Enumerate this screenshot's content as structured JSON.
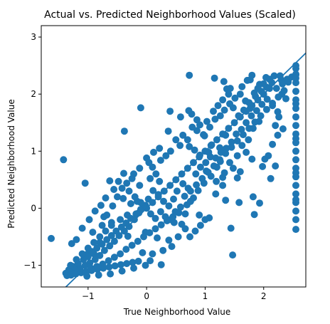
{
  "chart_data": {
    "type": "scatter",
    "title": "Actual vs. Predicted Neighborhood Values (Scaled)",
    "xlabel": "True Neighborhood Value",
    "ylabel": "Predicted Neighborhood Value",
    "xlim": [
      -1.8,
      2.72
    ],
    "ylim": [
      -1.38,
      3.2
    ],
    "xticks": [
      -1,
      0,
      1,
      2
    ],
    "xtick_labels": [
      "−1",
      "0",
      "1",
      "2"
    ],
    "yticks": [
      -1,
      0,
      1,
      2,
      3
    ],
    "ytick_labels": [
      "−1",
      "0",
      "1",
      "2",
      "3"
    ],
    "grid": false,
    "legend": "none",
    "reference_line": {
      "slope": 1,
      "intercept": 0
    },
    "colors": {
      "points": "#1f77b4",
      "line": "#1f77b4",
      "axes": "#000000"
    },
    "points": [
      [
        -1.63,
        -0.53
      ],
      [
        -1.42,
        0.85
      ],
      [
        -1.05,
        0.44
      ],
      [
        -0.38,
        1.35
      ],
      [
        -0.1,
        1.76
      ],
      [
        0.37,
        1.35
      ],
      [
        0.7,
        1.2
      ],
      [
        0.77,
        1.65
      ],
      [
        0.86,
        1.55
      ],
      [
        0.91,
        1.46
      ],
      [
        0.97,
        1.29
      ],
      [
        0.78,
        1.42
      ],
      [
        0.73,
        2.33
      ],
      [
        0.72,
        1.71
      ],
      [
        0.58,
        1.6
      ],
      [
        0.4,
        1.7
      ],
      [
        1.16,
        2.28
      ],
      [
        1.32,
        2.22
      ],
      [
        1.37,
        2.09
      ],
      [
        1.43,
        2.1
      ],
      [
        1.63,
        2.13
      ],
      [
        1.72,
        2.24
      ],
      [
        1.77,
        2.25
      ],
      [
        1.8,
        2.33
      ],
      [
        1.93,
        2.17
      ],
      [
        2.04,
        2.29
      ],
      [
        2.3,
        2.25
      ],
      [
        2.42,
        2.21
      ],
      [
        2.55,
        2.34
      ],
      [
        0.47,
        -0.25
      ],
      [
        0.6,
        -0.28
      ],
      [
        1.07,
        -0.17
      ],
      [
        1.58,
        0.1
      ],
      [
        1.8,
        0.86
      ],
      [
        1.84,
        -0.11
      ],
      [
        1.98,
        0.73
      ],
      [
        2.12,
        0.52
      ],
      [
        2.08,
        0.92
      ],
      [
        2.2,
        0.74
      ],
      [
        2.24,
        1.28
      ],
      [
        2.26,
        1.6
      ],
      [
        2.33,
        1.39
      ],
      [
        1.44,
        -0.35
      ],
      [
        1.47,
        -0.82
      ],
      [
        0.83,
        -0.4
      ],
      [
        0.43,
        -0.67
      ],
      [
        0.06,
        -0.92
      ],
      [
        -0.07,
        -0.78
      ],
      [
        0.25,
        -0.99
      ],
      [
        0.18,
        -0.52
      ],
      [
        -0.02,
        -0.42
      ],
      [
        -0.32,
        -0.49
      ],
      [
        0.69,
        0.06
      ],
      [
        0.9,
        -0.12
      ],
      [
        1.18,
        0.25
      ],
      [
        1.3,
        0.4
      ],
      [
        1.3,
        0.54
      ],
      [
        1.35,
        0.14
      ],
      [
        1.6,
        0.64
      ],
      [
        1.7,
        0.98
      ],
      [
        1.93,
        0.09
      ],
      [
        2.02,
        0.86
      ],
      [
        1.82,
        0.2
      ],
      [
        1.55,
        0.53
      ],
      [
        1.19,
        0.47
      ],
      [
        1.26,
        0.82
      ],
      [
        1.25,
        1.06
      ],
      [
        1.35,
        1.28
      ],
      [
        1.48,
        0.7
      ],
      [
        1.02,
        0.65
      ],
      [
        -0.9,
        -0.8
      ],
      [
        -0.8,
        -0.6
      ],
      [
        -1.28,
        -0.62
      ],
      [
        -1.02,
        -0.81
      ],
      [
        -0.92,
        -0.42
      ],
      [
        -0.73,
        -0.15
      ],
      [
        -0.6,
        -0.25
      ],
      [
        -0.45,
        -0.2
      ],
      [
        -0.33,
        -0.12
      ],
      [
        -0.27,
        0.08
      ],
      [
        -0.16,
        0.12
      ],
      [
        -0.4,
        0.17
      ],
      [
        -0.56,
        0.33
      ],
      [
        -0.63,
        0.48
      ],
      [
        -0.48,
        0.47
      ],
      [
        -0.39,
        0.61
      ],
      [
        -0.25,
        0.52
      ],
      [
        -0.12,
        0.4
      ],
      [
        0.06,
        0.52
      ],
      [
        0.22,
        0.47
      ],
      [
        0.16,
        0.6
      ],
      [
        0.1,
        0.72
      ],
      [
        0.04,
        0.8
      ],
      [
        0.24,
        0.84
      ],
      [
        0.33,
        0.92
      ],
      [
        0.41,
        1.0
      ],
      [
        0.57,
        1.1
      ],
      [
        0.73,
        1.08
      ],
      [
        0.82,
        1.02
      ],
      [
        0.91,
        0.93
      ],
      [
        1.06,
        0.98
      ],
      [
        1.11,
        1.11
      ],
      [
        0.99,
        1.27
      ],
      [
        1.08,
        1.42
      ],
      [
        1.17,
        1.56
      ],
      [
        1.26,
        1.62
      ],
      [
        1.33,
        1.72
      ],
      [
        1.42,
        1.83
      ],
      [
        1.51,
        1.93
      ],
      [
        1.6,
        2.0
      ],
      [
        1.69,
        1.88
      ],
      [
        1.77,
        1.75
      ],
      [
        1.86,
        1.96
      ],
      [
        1.96,
        2.05
      ],
      [
        2.05,
        2.12
      ],
      [
        2.14,
        2.2
      ],
      [
        2.22,
        2.1
      ],
      [
        2.31,
        2.0
      ],
      [
        2.38,
        1.92
      ],
      [
        2.2,
        1.45
      ],
      [
        2.15,
        1.12
      ],
      [
        1.92,
        1.52
      ],
      [
        1.82,
        1.4
      ],
      [
        1.74,
        1.2
      ],
      [
        1.63,
        1.1
      ],
      [
        1.55,
        0.92
      ],
      [
        1.42,
        0.8
      ],
      [
        1.33,
        0.62
      ],
      [
        1.2,
        0.72
      ],
      [
        1.1,
        0.56
      ],
      [
        0.98,
        0.44
      ],
      [
        0.88,
        0.31
      ],
      [
        0.8,
        0.18
      ],
      [
        0.71,
        0.35
      ],
      [
        0.62,
        0.43
      ],
      [
        0.52,
        0.3
      ],
      [
        0.46,
        0.16
      ],
      [
        0.38,
        0.04
      ],
      [
        0.29,
        0.12
      ],
      [
        0.2,
        0.24
      ],
      [
        0.11,
        0.31
      ],
      [
        0.03,
        0.16
      ],
      [
        -0.05,
        0.04
      ],
      [
        -0.13,
        -0.08
      ],
      [
        -0.21,
        -0.2
      ],
      [
        -0.3,
        -0.32
      ],
      [
        -0.38,
        -0.4
      ],
      [
        -0.47,
        -0.48
      ],
      [
        -0.55,
        -0.58
      ],
      [
        -0.63,
        -0.66
      ],
      [
        -0.72,
        -0.74
      ],
      [
        -0.8,
        -0.83
      ],
      [
        -0.88,
        -0.9
      ],
      [
        -0.97,
        -0.96
      ],
      [
        -1.05,
        -1.0
      ],
      [
        -1.14,
        -1.05
      ],
      [
        -1.22,
        -1.09
      ],
      [
        -1.31,
        -1.12
      ],
      [
        -1.38,
        -1.14
      ],
      [
        -1.33,
        -1.08
      ],
      [
        -1.25,
        -1.02
      ],
      [
        -1.17,
        -0.97
      ],
      [
        -1.08,
        -0.9
      ],
      [
        -1.0,
        -0.85
      ],
      [
        -0.93,
        -0.76
      ],
      [
        -0.85,
        -0.7
      ],
      [
        -0.76,
        -0.63
      ],
      [
        -0.68,
        -0.55
      ],
      [
        -0.6,
        -0.48
      ],
      [
        -0.52,
        -0.4
      ],
      [
        -0.43,
        -0.33
      ],
      [
        -0.35,
        -0.26
      ],
      [
        -0.27,
        -0.18
      ],
      [
        -0.18,
        -0.1
      ],
      [
        -0.1,
        -0.02
      ],
      [
        -0.02,
        0.05
      ],
      [
        0.07,
        -0.1
      ],
      [
        0.15,
        -0.18
      ],
      [
        0.24,
        -0.06
      ],
      [
        0.32,
        -0.15
      ],
      [
        0.41,
        -0.2
      ],
      [
        0.49,
        -0.06
      ],
      [
        0.58,
        0.02
      ],
      [
        0.66,
        -0.1
      ],
      [
        0.75,
        0.12
      ],
      [
        0.84,
        0.6
      ],
      [
        0.92,
        0.72
      ],
      [
        1.01,
        0.8
      ],
      [
        1.09,
        0.9
      ],
      [
        1.18,
        0.88
      ],
      [
        1.27,
        0.98
      ],
      [
        1.36,
        1.05
      ],
      [
        1.45,
        1.16
      ],
      [
        1.53,
        1.3
      ],
      [
        1.62,
        1.38
      ],
      [
        1.7,
        1.5
      ],
      [
        1.79,
        1.62
      ],
      [
        1.88,
        1.71
      ],
      [
        1.97,
        1.82
      ],
      [
        2.06,
        1.91
      ],
      [
        2.15,
        1.8
      ],
      [
        2.24,
        1.69
      ],
      [
        2.32,
        2.18
      ],
      [
        2.4,
        2.26
      ],
      [
        2.28,
        2.32
      ],
      [
        2.48,
        2.3
      ],
      [
        -1.2,
        -0.55
      ],
      [
        -1.1,
        -0.35
      ],
      [
        -0.98,
        -0.2
      ],
      [
        -0.88,
        -0.05
      ],
      [
        -0.78,
        0.05
      ],
      [
        -0.7,
        0.18
      ],
      [
        -0.95,
        -1.05
      ],
      [
        -0.85,
        -1.02
      ],
      [
        -0.75,
        -0.98
      ],
      [
        -0.65,
        -0.92
      ],
      [
        -0.55,
        -0.86
      ],
      [
        -0.45,
        -0.8
      ],
      [
        -0.35,
        -0.72
      ],
      [
        -0.25,
        -0.65
      ],
      [
        -0.15,
        -0.58
      ],
      [
        -0.05,
        -0.5
      ],
      [
        0.05,
        -0.43
      ],
      [
        0.15,
        -0.36
      ],
      [
        0.25,
        -0.29
      ],
      [
        0.35,
        -0.22
      ],
      [
        0.45,
        -0.15
      ],
      [
        0.55,
        -0.08
      ],
      [
        0.65,
        0.21
      ],
      [
        0.75,
        0.3
      ],
      [
        0.85,
        0.41
      ],
      [
        0.95,
        0.52
      ],
      [
        1.05,
        0.63
      ],
      [
        1.15,
        0.74
      ],
      [
        1.25,
        0.85
      ],
      [
        1.35,
        0.96
      ],
      [
        1.45,
        1.07
      ],
      [
        1.55,
        1.18
      ],
      [
        1.65,
        1.29
      ],
      [
        1.75,
        1.4
      ],
      [
        1.85,
        1.51
      ],
      [
        1.95,
        1.62
      ],
      [
        2.05,
        1.73
      ],
      [
        2.15,
        1.84
      ],
      [
        2.25,
        1.95
      ],
      [
        2.35,
        2.06
      ],
      [
        -1.36,
        -1.18
      ],
      [
        -1.29,
        -1.17
      ],
      [
        -1.21,
        -1.15
      ],
      [
        -1.12,
        -1.13
      ],
      [
        -1.03,
        -1.11
      ],
      [
        -0.94,
        -1.09
      ],
      [
        -0.84,
        -1.07
      ],
      [
        -0.74,
        -1.05
      ],
      [
        -0.64,
        -1.03
      ],
      [
        -0.54,
        -1.01
      ],
      [
        -0.44,
        -0.99
      ],
      [
        -0.34,
        -0.97
      ],
      [
        -0.24,
        -0.95
      ],
      [
        -0.14,
        -0.93
      ],
      [
        -0.76,
        -0.3
      ],
      [
        -0.68,
        -0.12
      ],
      [
        -0.58,
        0.04
      ],
      [
        -0.5,
        0.2
      ],
      [
        -0.42,
        0.35
      ],
      [
        -0.34,
        0.44
      ],
      [
        -0.22,
        0.6
      ],
      [
        -0.12,
        0.7
      ],
      [
        0.0,
        0.88
      ],
      [
        0.12,
        0.98
      ],
      [
        0.22,
        1.05
      ],
      [
        0.5,
        1.2
      ],
      [
        0.62,
        1.28
      ],
      [
        0.86,
        1.36
      ],
      [
        1.03,
        1.52
      ],
      [
        1.14,
        1.7
      ],
      [
        1.22,
        1.8
      ],
      [
        1.3,
        1.9
      ],
      [
        1.4,
        2.0
      ],
      [
        1.48,
        1.76
      ],
      [
        1.57,
        1.62
      ],
      [
        1.66,
        1.72
      ],
      [
        1.75,
        1.85
      ],
      [
        1.84,
        2.02
      ],
      [
        1.9,
        2.1
      ],
      [
        2.0,
        2.18
      ],
      [
        2.1,
        2.26
      ],
      [
        2.18,
        2.32
      ],
      [
        2.55,
        2.45
      ],
      [
        2.55,
        2.35
      ],
      [
        2.55,
        2.2
      ],
      [
        2.55,
        2.05
      ],
      [
        2.55,
        1.9
      ],
      [
        2.55,
        1.75
      ],
      [
        2.55,
        1.6
      ],
      [
        2.55,
        1.45
      ],
      [
        2.55,
        1.3
      ],
      [
        2.55,
        1.15
      ],
      [
        2.55,
        1.0
      ],
      [
        2.55,
        0.85
      ],
      [
        2.55,
        0.7
      ],
      [
        2.55,
        0.55
      ],
      [
        2.55,
        0.4
      ],
      [
        2.55,
        0.25
      ],
      [
        2.55,
        0.1
      ],
      [
        2.55,
        -0.05
      ],
      [
        2.55,
        -0.2
      ],
      [
        2.55,
        -0.37
      ],
      [
        2.55,
        2.5
      ],
      [
        2.55,
        2.28
      ],
      [
        2.55,
        1.83
      ],
      [
        2.55,
        1.22
      ],
      [
        2.55,
        0.62
      ],
      [
        2.55,
        0.15
      ],
      [
        -1.02,
        -1.19
      ],
      [
        -0.82,
        -1.17
      ],
      [
        -0.62,
        -1.15
      ],
      [
        -0.42,
        -1.1
      ],
      [
        -0.22,
        -1.05
      ],
      [
        -0.02,
        -1.0
      ],
      [
        0.1,
        -0.8
      ],
      [
        0.28,
        -0.74
      ],
      [
        0.38,
        -0.56
      ],
      [
        0.54,
        -0.5
      ],
      [
        0.66,
        -0.36
      ],
      [
        0.74,
        -0.5
      ],
      [
        0.92,
        -0.3
      ],
      [
        1.0,
        -0.2
      ],
      [
        0.3,
        0.3
      ],
      [
        0.4,
        0.4
      ],
      [
        0.5,
        0.5
      ],
      [
        0.6,
        0.6
      ],
      [
        0.7,
        0.7
      ],
      [
        0.8,
        0.8
      ],
      [
        0.9,
        0.9
      ],
      [
        1.0,
        1.0
      ],
      [
        1.1,
        1.1
      ],
      [
        1.2,
        1.2
      ],
      [
        1.3,
        1.3
      ],
      [
        1.4,
        1.4
      ],
      [
        1.5,
        1.5
      ],
      [
        1.6,
        1.6
      ],
      [
        1.7,
        1.7
      ],
      [
        1.8,
        1.8
      ],
      [
        1.9,
        1.9
      ],
      [
        2.0,
        2.0
      ],
      [
        2.1,
        2.1
      ],
      [
        -0.1,
        0.1
      ],
      [
        -0.2,
        0.2
      ],
      [
        -0.3,
        0.3
      ],
      [
        0.0,
        0.0
      ],
      [
        0.1,
        0.1
      ],
      [
        0.2,
        0.2
      ],
      [
        -0.6,
        -0.3
      ],
      [
        -0.7,
        -0.4
      ],
      [
        -0.8,
        -0.5
      ],
      [
        -0.9,
        -0.6
      ],
      [
        -1.0,
        -0.7
      ],
      [
        -1.1,
        -0.8
      ],
      [
        -1.2,
        -0.9
      ],
      [
        -1.3,
        -1.0
      ]
    ]
  }
}
